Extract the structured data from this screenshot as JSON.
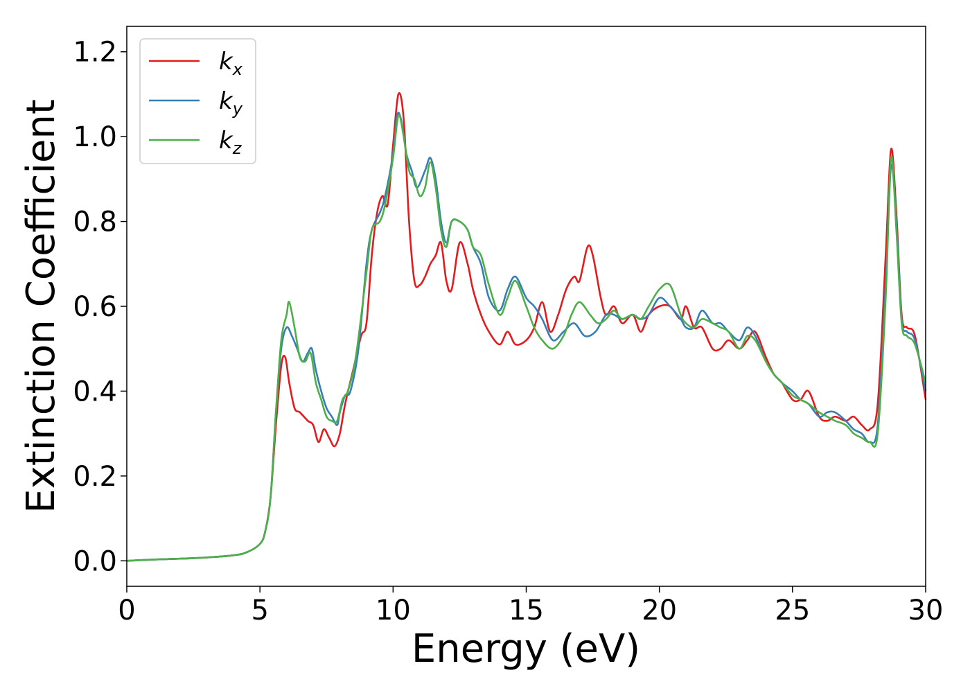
{
  "chart_data": {
    "type": "line",
    "xlabel": "Energy (eV)",
    "ylabel": "Extinction Coefficient",
    "xlim": [
      0,
      30
    ],
    "ylim": [
      -0.06,
      1.26
    ],
    "xticks": [
      "0",
      "5",
      "10",
      "15",
      "20",
      "25",
      "30"
    ],
    "yticks": [
      "0.0",
      "0.2",
      "0.4",
      "0.6",
      "0.8",
      "1.0",
      "1.2"
    ],
    "grid": false,
    "legend_position": "top-left",
    "series": [
      {
        "name": "k",
        "subscript": "x",
        "color": "#e41a1c",
        "x": [
          0,
          1,
          2,
          3,
          4,
          4.5,
          5,
          5.2,
          5.4,
          5.6,
          5.8,
          5.95,
          6.1,
          6.3,
          6.5,
          6.8,
          7,
          7.2,
          7.4,
          7.6,
          7.8,
          8,
          8.2,
          8.5,
          8.8,
          9,
          9.2,
          9.4,
          9.6,
          9.8,
          10,
          10.2,
          10.4,
          10.6,
          10.8,
          11,
          11.2,
          11.4,
          11.6,
          11.8,
          12,
          12.2,
          12.5,
          12.8,
          13,
          13.3,
          13.6,
          14,
          14.3,
          14.6,
          15,
          15.3,
          15.6,
          15.9,
          16.2,
          16.5,
          16.8,
          17,
          17.3,
          17.5,
          17.8,
          18,
          18.3,
          18.6,
          19,
          19.3,
          19.6,
          20,
          20.4,
          20.8,
          21,
          21.3,
          21.6,
          22,
          22.3,
          22.6,
          23,
          23.3,
          23.6,
          24,
          24.3,
          24.6,
          25,
          25.3,
          25.6,
          26,
          26.3,
          26.6,
          27,
          27.3,
          27.6,
          27.9,
          28.2,
          28.5,
          28.7,
          28.9,
          29.1,
          29.3,
          29.6,
          30
        ],
        "y": [
          0,
          0.003,
          0.005,
          0.008,
          0.013,
          0.02,
          0.04,
          0.07,
          0.15,
          0.32,
          0.46,
          0.48,
          0.42,
          0.36,
          0.35,
          0.33,
          0.32,
          0.28,
          0.31,
          0.29,
          0.27,
          0.3,
          0.37,
          0.45,
          0.53,
          0.56,
          0.72,
          0.82,
          0.86,
          0.84,
          0.98,
          1.1,
          1.04,
          0.8,
          0.66,
          0.65,
          0.67,
          0.7,
          0.72,
          0.75,
          0.66,
          0.64,
          0.75,
          0.7,
          0.64,
          0.58,
          0.54,
          0.51,
          0.54,
          0.51,
          0.52,
          0.55,
          0.61,
          0.54,
          0.58,
          0.64,
          0.67,
          0.66,
          0.74,
          0.72,
          0.62,
          0.58,
          0.6,
          0.56,
          0.58,
          0.54,
          0.58,
          0.6,
          0.6,
          0.57,
          0.6,
          0.55,
          0.55,
          0.5,
          0.5,
          0.52,
          0.5,
          0.52,
          0.54,
          0.48,
          0.44,
          0.42,
          0.38,
          0.38,
          0.4,
          0.34,
          0.33,
          0.34,
          0.33,
          0.34,
          0.32,
          0.31,
          0.37,
          0.72,
          0.97,
          0.82,
          0.58,
          0.55,
          0.53,
          0.38
        ]
      },
      {
        "name": "k",
        "subscript": "y",
        "color": "#377eb8",
        "x": [
          0,
          1,
          2,
          3,
          4,
          4.5,
          5,
          5.2,
          5.4,
          5.6,
          5.8,
          6,
          6.2,
          6.4,
          6.6,
          6.8,
          6.95,
          7.1,
          7.3,
          7.5,
          7.7,
          7.9,
          8,
          8.2,
          8.4,
          8.7,
          9,
          9.2,
          9.5,
          9.7,
          10,
          10.15,
          10.3,
          10.5,
          10.7,
          10.9,
          11.2,
          11.4,
          11.6,
          11.8,
          12,
          12.2,
          12.5,
          12.8,
          13,
          13.3,
          13.6,
          14,
          14.3,
          14.6,
          15,
          15.3,
          15.6,
          16,
          16.4,
          16.8,
          17.2,
          17.6,
          18,
          18.3,
          18.6,
          19,
          19.3,
          19.6,
          20,
          20.4,
          20.8,
          21,
          21.3,
          21.6,
          22,
          22.3,
          22.6,
          23,
          23.3,
          23.6,
          24,
          24.3,
          24.6,
          25,
          25.3,
          25.6,
          26,
          26.3,
          26.6,
          27,
          27.3,
          27.6,
          27.9,
          28.2,
          28.5,
          28.7,
          28.9,
          29.1,
          29.3,
          29.6,
          30
        ],
        "y": [
          0,
          0.003,
          0.005,
          0.008,
          0.013,
          0.02,
          0.04,
          0.07,
          0.15,
          0.35,
          0.5,
          0.55,
          0.53,
          0.5,
          0.47,
          0.49,
          0.5,
          0.45,
          0.4,
          0.36,
          0.34,
          0.32,
          0.35,
          0.39,
          0.4,
          0.5,
          0.7,
          0.78,
          0.82,
          0.86,
          0.96,
          1.05,
          1.04,
          0.96,
          0.92,
          0.88,
          0.92,
          0.95,
          0.9,
          0.8,
          0.75,
          0.8,
          0.8,
          0.78,
          0.74,
          0.7,
          0.62,
          0.59,
          0.64,
          0.67,
          0.62,
          0.6,
          0.57,
          0.52,
          0.54,
          0.56,
          0.53,
          0.54,
          0.58,
          0.58,
          0.57,
          0.58,
          0.57,
          0.58,
          0.62,
          0.6,
          0.57,
          0.55,
          0.55,
          0.59,
          0.56,
          0.56,
          0.54,
          0.52,
          0.55,
          0.53,
          0.47,
          0.44,
          0.42,
          0.4,
          0.38,
          0.37,
          0.34,
          0.35,
          0.35,
          0.33,
          0.31,
          0.3,
          0.28,
          0.32,
          0.65,
          0.93,
          0.8,
          0.57,
          0.54,
          0.52,
          0.4
        ]
      },
      {
        "name": "k",
        "subscript": "z",
        "color": "#4daf4a",
        "x": [
          0,
          1,
          2,
          3,
          4,
          4.5,
          5,
          5.2,
          5.4,
          5.6,
          5.8,
          6,
          6.1,
          6.3,
          6.5,
          6.7,
          6.9,
          7.1,
          7.3,
          7.5,
          7.7,
          7.9,
          8.1,
          8.3,
          8.6,
          9,
          9.2,
          9.5,
          9.7,
          10,
          10.2,
          10.4,
          10.6,
          10.8,
          11,
          11.2,
          11.4,
          11.6,
          11.8,
          12,
          12.2,
          12.5,
          12.8,
          13,
          13.3,
          13.6,
          14,
          14.3,
          14.6,
          15,
          15.3,
          15.6,
          16,
          16.4,
          16.7,
          17,
          17.4,
          17.7,
          18,
          18.3,
          18.6,
          19,
          19.3,
          19.6,
          20,
          20.4,
          20.8,
          21,
          21.3,
          21.6,
          22,
          22.3,
          22.6,
          23,
          23.3,
          23.6,
          24,
          24.3,
          24.6,
          25,
          25.3,
          25.6,
          26,
          26.3,
          26.6,
          27,
          27.3,
          27.6,
          27.9,
          28.2,
          28.5,
          28.7,
          28.9,
          29.1,
          29.3,
          29.6,
          30
        ],
        "y": [
          0,
          0.003,
          0.005,
          0.008,
          0.013,
          0.02,
          0.04,
          0.07,
          0.15,
          0.35,
          0.52,
          0.58,
          0.61,
          0.55,
          0.48,
          0.47,
          0.49,
          0.42,
          0.38,
          0.34,
          0.33,
          0.33,
          0.38,
          0.4,
          0.48,
          0.68,
          0.78,
          0.8,
          0.84,
          0.95,
          1.05,
          1.0,
          0.92,
          0.9,
          0.86,
          0.88,
          0.94,
          0.88,
          0.78,
          0.74,
          0.8,
          0.8,
          0.78,
          0.74,
          0.72,
          0.65,
          0.58,
          0.62,
          0.66,
          0.6,
          0.55,
          0.52,
          0.5,
          0.53,
          0.58,
          0.61,
          0.58,
          0.56,
          0.57,
          0.59,
          0.57,
          0.58,
          0.57,
          0.6,
          0.64,
          0.65,
          0.58,
          0.56,
          0.55,
          0.57,
          0.56,
          0.55,
          0.54,
          0.5,
          0.53,
          0.52,
          0.47,
          0.44,
          0.42,
          0.39,
          0.38,
          0.37,
          0.35,
          0.34,
          0.33,
          0.32,
          0.3,
          0.29,
          0.28,
          0.3,
          0.62,
          0.95,
          0.78,
          0.56,
          0.53,
          0.51,
          0.42
        ]
      }
    ]
  }
}
